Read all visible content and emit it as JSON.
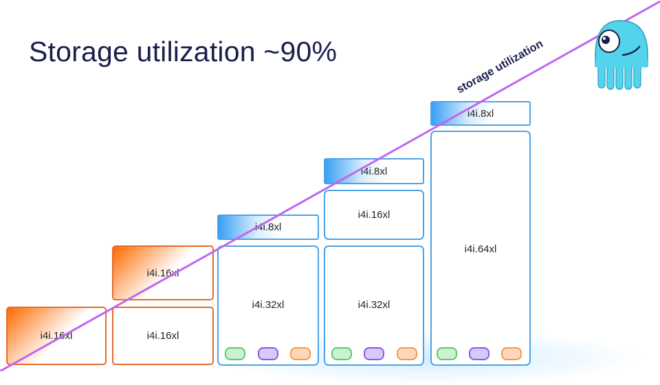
{
  "title": "Storage utilization ~90%",
  "line_label": "storage utilization",
  "columns": [
    {
      "nodes": [
        {
          "label": "i4i.16xl",
          "style": "orange-grad"
        }
      ]
    },
    {
      "nodes": [
        {
          "label": "i4i.16xl",
          "style": "orange-grad"
        },
        {
          "label": "i4i.16xl",
          "style": "orange"
        }
      ]
    },
    {
      "nodes": [
        {
          "label": "i4i.8xl",
          "style": "blue-grad"
        },
        {
          "label": "i4i.32xl",
          "style": "blue"
        }
      ]
    },
    {
      "nodes": [
        {
          "label": "i4i.8xl",
          "style": "blue-grad"
        },
        {
          "label": "i4i.16xl",
          "style": "blue"
        },
        {
          "label": "i4i.32xl",
          "style": "blue"
        }
      ]
    },
    {
      "nodes": [
        {
          "label": "i4i.8xl",
          "style": "blue-grad"
        },
        {
          "label": "i4i.64xl",
          "style": "blue"
        }
      ]
    }
  ],
  "colors": {
    "title": "#1a1f4b",
    "line": "#c065f0",
    "orange": "#e56a2a",
    "blue": "#4aa3e8",
    "mascot": "#53d3ec"
  },
  "icons": [
    "scylla-mascot-icon"
  ]
}
